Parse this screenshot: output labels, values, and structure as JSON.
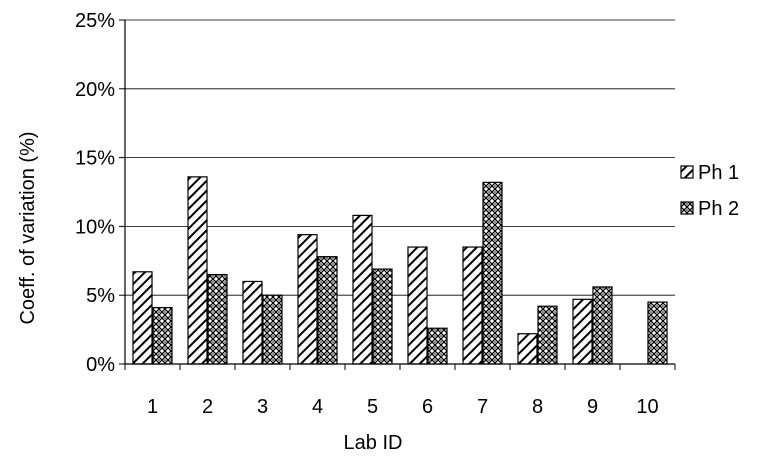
{
  "chart_data": {
    "type": "bar",
    "title": "",
    "xlabel": "Lab ID",
    "ylabel": "Coeff. of variation (%)",
    "categories": [
      "1",
      "2",
      "3",
      "4",
      "5",
      "6",
      "7",
      "8",
      "9",
      "10"
    ],
    "series": [
      {
        "name": "Ph 1",
        "values": [
          6.7,
          13.6,
          6.0,
          9.4,
          10.8,
          8.5,
          8.5,
          2.2,
          4.7,
          null
        ],
        "pattern": "diagonal-hatch"
      },
      {
        "name": "Ph 2",
        "values": [
          4.1,
          6.5,
          5.0,
          7.8,
          6.9,
          2.6,
          13.2,
          4.2,
          5.6,
          4.5
        ],
        "pattern": "crosshatch"
      }
    ],
    "ylim": [
      0,
      25
    ],
    "yticks": [
      "0%",
      "5%",
      "10%",
      "15%",
      "20%",
      "25%"
    ],
    "grid": true,
    "legend_position": "right",
    "colors": {
      "bar_stroke": "#000000",
      "grid": "#000000",
      "background": "#ffffff"
    }
  }
}
